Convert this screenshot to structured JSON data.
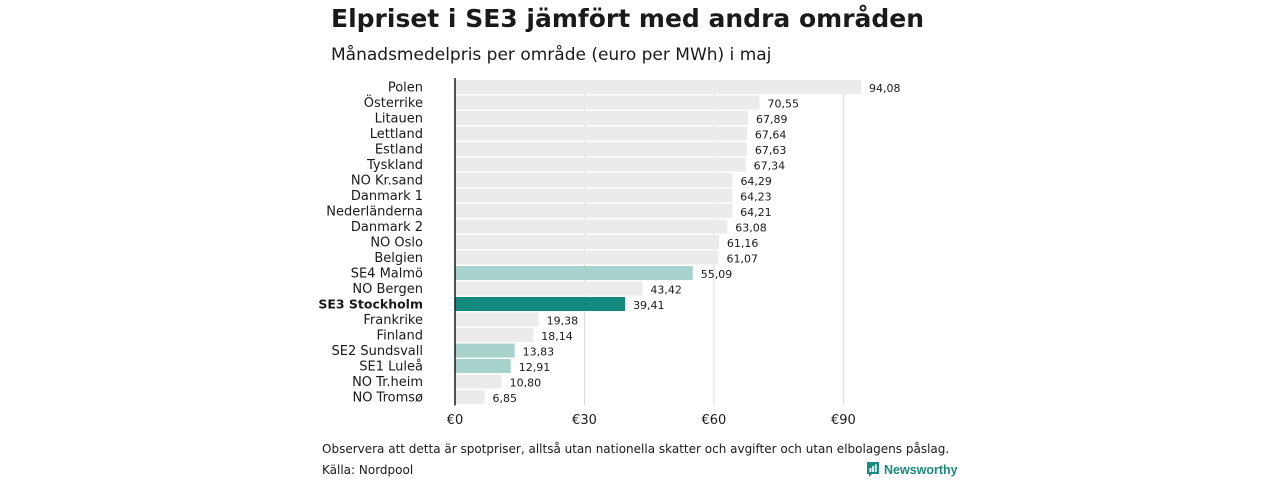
{
  "title": "Elpriset i SE3 jämfört med andra områden",
  "subtitle": "Månadsmedelpris per område (euro per MWh) i maj",
  "note": "Observera att detta är spotpriser, alltså utan nationella skatter och avgifter och utan elbolagens påslag.",
  "source": "Källa: Nordpool",
  "brand": "Newsworthy",
  "colors": {
    "default_bar": "#ebebeb",
    "nordic_highlight": "#a7d3cc",
    "primary_highlight": "#138a7d",
    "brand": "#1a8a7e"
  },
  "chart_data": {
    "type": "bar",
    "orientation": "horizontal",
    "categories": [
      "Polen",
      "Österrike",
      "Litauen",
      "Lettland",
      "Estland",
      "Tyskland",
      "NO Kr.sand",
      "Danmark 1",
      "Nederländerna",
      "Danmark 2",
      "NO Oslo",
      "Belgien",
      "SE4 Malmö",
      "NO Bergen",
      "SE3 Stockholm",
      "Frankrike",
      "Finland",
      "SE2 Sundsvall",
      "SE1 Luleå",
      "NO Tr.heim",
      "NO Tromsø"
    ],
    "values": [
      94.08,
      70.55,
      67.89,
      67.64,
      67.63,
      67.34,
      64.29,
      64.23,
      64.21,
      63.08,
      61.16,
      61.07,
      55.09,
      43.42,
      39.41,
      19.38,
      18.14,
      13.83,
      12.91,
      10.8,
      6.85
    ],
    "value_labels": [
      "94,08",
      "70,55",
      "67,89",
      "67,64",
      "67,63",
      "67,34",
      "64,29",
      "64,23",
      "64,21",
      "63,08",
      "61,16",
      "61,07",
      "55,09",
      "43,42",
      "39,41",
      "19,38",
      "18,14",
      "13,83",
      "12,91",
      "10,80",
      "6,85"
    ],
    "highlight": [
      "none",
      "none",
      "none",
      "none",
      "none",
      "none",
      "none",
      "none",
      "none",
      "none",
      "none",
      "none",
      "secondary",
      "none",
      "primary",
      "none",
      "none",
      "secondary",
      "secondary",
      "none",
      "none"
    ],
    "x_ticks": [
      0,
      30,
      60,
      90
    ],
    "x_tick_labels": [
      "€0",
      "€30",
      "€60",
      "€90"
    ],
    "xlim": [
      0,
      94.08
    ],
    "grid": "vertical",
    "title": "Elpriset i SE3 jämfört med andra områden",
    "subtitle": "Månadsmedelpris per område (euro per MWh) i maj"
  }
}
